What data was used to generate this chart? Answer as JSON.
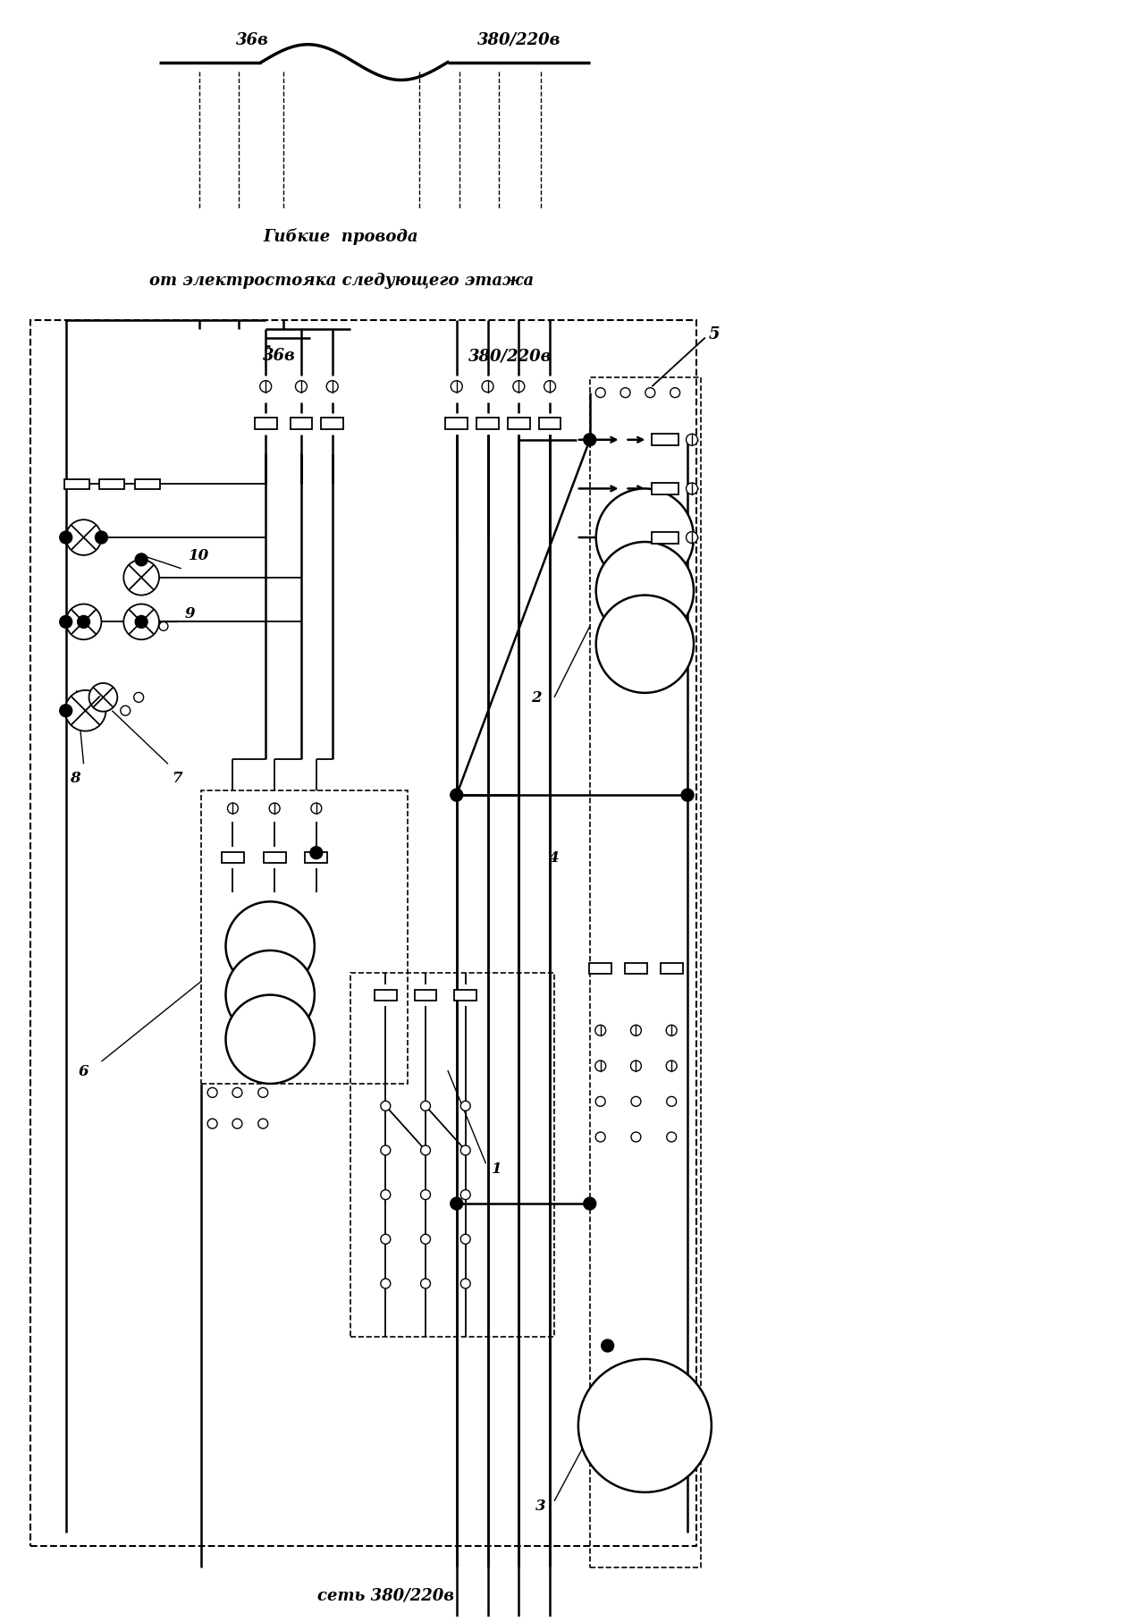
{
  "bg_color": "#ffffff",
  "line_color": "#000000",
  "label_36v_top": "36в",
  "label_380v_top": "380/220в",
  "label_flexible": "Гибкие  провода",
  "label_from": "от электростояка следующего этажа",
  "label_36v_mid": "36в",
  "label_380v_mid": "380/220в",
  "label_net": "сеть 380/220в",
  "figw": 12.54,
  "figh": 18.15,
  "dpi": 100
}
